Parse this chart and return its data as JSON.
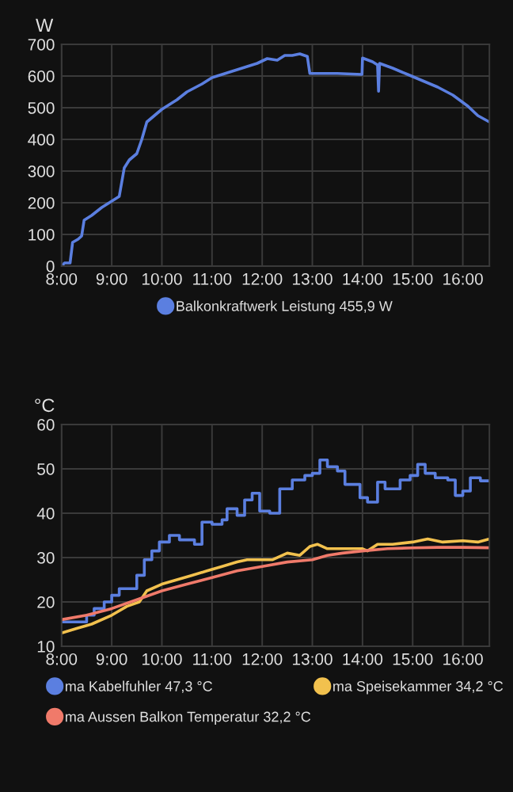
{
  "chart_data": [
    {
      "type": "line",
      "ylabel": "W",
      "series": [
        {
          "name": "Balkonkraftwerk Leistung 455,9 W",
          "color": "#5b7fe0",
          "x": [
            8.0,
            8.06,
            8.17,
            8.22,
            8.33,
            8.4,
            8.45,
            8.6,
            8.8,
            9.0,
            9.15,
            9.25,
            9.35,
            9.5,
            9.6,
            9.7,
            9.85,
            10.0,
            10.3,
            10.5,
            10.8,
            11.0,
            11.3,
            11.6,
            11.9,
            12.1,
            12.3,
            12.45,
            12.6,
            12.75,
            12.9,
            12.95,
            13.5,
            13.99,
            14.0,
            14.2,
            14.3,
            14.32,
            14.34,
            14.6,
            14.9,
            15.2,
            15.5,
            15.8,
            16.1,
            16.3,
            16.53
          ],
          "values": [
            0,
            10,
            10,
            75,
            85,
            95,
            145,
            160,
            185,
            205,
            220,
            310,
            335,
            355,
            400,
            455,
            475,
            495,
            525,
            550,
            575,
            595,
            610,
            625,
            640,
            655,
            650,
            665,
            665,
            670,
            662,
            608,
            608,
            605,
            657,
            645,
            635,
            552,
            640,
            625,
            605,
            585,
            565,
            540,
            505,
            475,
            455
          ]
        }
      ],
      "xlim": [
        8,
        16.53
      ],
      "ylim": [
        0,
        700
      ],
      "xticks": [
        {
          "value": 8,
          "label": "8:00"
        },
        {
          "value": 9,
          "label": "9:00"
        },
        {
          "value": 10,
          "label": "10:00"
        },
        {
          "value": 11,
          "label": "11:00"
        },
        {
          "value": 12,
          "label": "12:00"
        },
        {
          "value": 13,
          "label": "13:00"
        },
        {
          "value": 14,
          "label": "14:00"
        },
        {
          "value": 15,
          "label": "15:00"
        },
        {
          "value": 16,
          "label": "16:00"
        }
      ],
      "yticks": [
        0,
        100,
        200,
        300,
        400,
        500,
        600,
        700
      ],
      "grid": true,
      "legend": "bottom",
      "marker": "none"
    },
    {
      "type": "line",
      "ylabel": "°C",
      "series": [
        {
          "name": "ma Kabelfuhler 47,3 °C",
          "color": "#5b7fe0",
          "type": "step",
          "x": [
            8.0,
            8.5,
            8.65,
            8.85,
            9.0,
            9.15,
            9.5,
            9.65,
            9.8,
            9.95,
            10.15,
            10.35,
            10.65,
            10.8,
            11.0,
            11.2,
            11.3,
            11.5,
            11.65,
            11.8,
            11.95,
            12.15,
            12.35,
            12.6,
            12.85,
            13.0,
            13.15,
            13.3,
            13.5,
            13.65,
            13.95,
            14.1,
            14.3,
            14.45,
            14.75,
            14.95,
            15.1,
            15.25,
            15.45,
            15.7,
            15.85,
            16.0,
            16.15,
            16.35,
            16.53
          ],
          "values": [
            15.5,
            17,
            18.5,
            20,
            21.5,
            23,
            26,
            29.5,
            31.5,
            33.5,
            35,
            34,
            33,
            38,
            37.5,
            38.5,
            41,
            39.5,
            43,
            44.5,
            40.5,
            40,
            45.5,
            47.5,
            48.5,
            49,
            52,
            50.5,
            49.5,
            46.5,
            43.5,
            42.5,
            47,
            45.5,
            47.5,
            48.5,
            51,
            49,
            48,
            47.5,
            44,
            45,
            48,
            47.3,
            47.3
          ]
        },
        {
          "name": "ma Speisekammer 34,2 °C",
          "color": "#f2c14e",
          "x": [
            8.0,
            8.3,
            8.6,
            9.0,
            9.3,
            9.55,
            9.7,
            10.0,
            10.3,
            10.6,
            10.9,
            11.2,
            11.5,
            11.7,
            12.0,
            12.2,
            12.5,
            12.75,
            12.95,
            13.1,
            13.3,
            13.6,
            14.0,
            14.1,
            14.3,
            14.6,
            15.0,
            15.3,
            15.6,
            16.0,
            16.3,
            16.53
          ],
          "values": [
            13,
            14,
            15,
            17,
            19,
            20,
            22.5,
            24,
            25,
            26,
            27,
            28,
            29,
            29.5,
            29.5,
            29.5,
            31,
            30.5,
            32.5,
            33,
            32,
            32,
            32,
            31.5,
            33,
            33,
            33.5,
            34.2,
            33.5,
            33.8,
            33.5,
            34.2
          ]
        },
        {
          "name": "ma Aussen Balkon Temperatur 32,2 °C",
          "color": "#f07a6a",
          "x": [
            8.0,
            8.5,
            9.0,
            9.5,
            10.0,
            10.5,
            11.0,
            11.5,
            12.0,
            12.5,
            13.0,
            13.3,
            13.6,
            14.0,
            14.5,
            15.0,
            15.5,
            16.0,
            16.53
          ],
          "values": [
            16,
            17,
            18.5,
            20.5,
            22.5,
            24,
            25.5,
            27,
            28,
            29,
            29.5,
            30.5,
            31,
            31.5,
            32,
            32.2,
            32.3,
            32.3,
            32.2
          ]
        }
      ],
      "xlim": [
        8,
        16.53
      ],
      "ylim": [
        10,
        60
      ],
      "xticks": [
        {
          "value": 8,
          "label": "8:00"
        },
        {
          "value": 9,
          "label": "9:00"
        },
        {
          "value": 10,
          "label": "10:00"
        },
        {
          "value": 11,
          "label": "11:00"
        },
        {
          "value": 12,
          "label": "12:00"
        },
        {
          "value": 13,
          "label": "13:00"
        },
        {
          "value": 14,
          "label": "14:00"
        },
        {
          "value": 15,
          "label": "15:00"
        },
        {
          "value": 16,
          "label": "16:00"
        }
      ],
      "yticks": [
        10,
        20,
        30,
        40,
        50,
        60
      ],
      "grid": true,
      "legend": "bottom",
      "marker": "none"
    }
  ]
}
